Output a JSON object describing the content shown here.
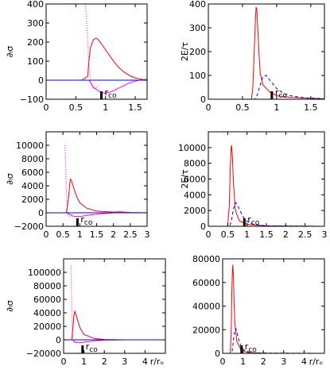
{
  "chart_data": [
    {
      "id": "p1",
      "type": "line",
      "ylabel": "∂ₗσ",
      "xlabel": "",
      "xlim": [
        0,
        1.7
      ],
      "ylim": [
        -100,
        400
      ],
      "xticks": [
        "0",
        "0.5",
        "1",
        "1.5"
      ],
      "xtick_values": [
        0,
        0.5,
        1,
        1.5
      ],
      "yticks": [
        "−100",
        "0",
        "100",
        "200",
        "300",
        "400"
      ],
      "ytick_values": [
        -100,
        0,
        100,
        200,
        300,
        400
      ],
      "marker": {
        "label": "r",
        "sub": "co",
        "x": 0.93
      },
      "series": [
        {
          "color": "#ff0000",
          "dash": "solid",
          "x": [
            0,
            0.6,
            0.7,
            0.72,
            0.75,
            0.8,
            0.85,
            0.9,
            1.0,
            1.1,
            1.2,
            1.3,
            1.4,
            1.5,
            1.6,
            1.7
          ],
          "y": [
            0,
            0,
            20,
            100,
            175,
            215,
            220,
            205,
            160,
            115,
            75,
            45,
            25,
            12,
            5,
            0
          ]
        },
        {
          "color": "#ff00ff",
          "dash": "dotted",
          "x": [
            0.66,
            0.68,
            0.7,
            0.72,
            0.74,
            0.77,
            0.8,
            0.85,
            0.9
          ],
          "y": [
            400,
            330,
            200,
            90,
            20,
            -30,
            -45,
            -40,
            -25
          ]
        },
        {
          "color": "#ff00ff",
          "dash": "solid",
          "x": [
            0,
            0.72,
            0.75,
            0.8,
            0.9,
            1.0,
            1.1,
            1.2,
            1.3,
            1.4,
            1.5,
            1.6,
            1.7
          ],
          "y": [
            0,
            0,
            -12,
            -38,
            -60,
            -68,
            -60,
            -45,
            -30,
            -15,
            -5,
            2,
            4
          ]
        },
        {
          "color": "#0000ff",
          "dash": "solid",
          "x": [
            0,
            0.3,
            0.6,
            0.9,
            1.2,
            1.5,
            1.7
          ],
          "y": [
            0,
            0,
            0,
            0,
            0,
            0,
            0
          ]
        }
      ]
    },
    {
      "id": "p2",
      "type": "line",
      "ylabel": "2E/τ",
      "xlabel": "",
      "xlim": [
        0,
        1.7
      ],
      "ylim": [
        0,
        400
      ],
      "xticks": [
        "0",
        "0.5",
        "1",
        "1.5"
      ],
      "xtick_values": [
        0,
        0.5,
        1,
        1.5
      ],
      "yticks": [
        "0",
        "100",
        "200",
        "300",
        "400"
      ],
      "ytick_values": [
        0,
        100,
        200,
        300,
        400
      ],
      "marker": {
        "label": "r",
        "sub": "co",
        "x": 0.93
      },
      "series": [
        {
          "color": "#ff0000",
          "dash": "solid",
          "x": [
            0,
            0.63,
            0.65,
            0.67,
            0.69,
            0.7,
            0.71,
            0.72,
            0.74,
            0.76,
            0.8,
            0.9,
            1.0,
            1.2,
            1.4,
            1.6,
            1.7
          ],
          "y": [
            0,
            0,
            40,
            180,
            340,
            385,
            380,
            320,
            200,
            110,
            60,
            30,
            15,
            8,
            5,
            3,
            2
          ]
        },
        {
          "color": "#0000ff",
          "dash": "dashed",
          "x": [
            0,
            0.68,
            0.72,
            0.76,
            0.8,
            0.85,
            0.9,
            1.0,
            1.1,
            1.2,
            1.4,
            1.7
          ],
          "y": [
            0,
            0,
            20,
            60,
            95,
            100,
            80,
            45,
            25,
            15,
            6,
            2
          ]
        }
      ]
    },
    {
      "id": "p3",
      "type": "line",
      "ylabel": "∂ₗσ",
      "xlabel": "",
      "xlim": [
        0,
        3
      ],
      "ylim": [
        -2000,
        12000
      ],
      "xticks": [
        "0",
        "0.5",
        "1",
        "1.5",
        "2",
        "2.5",
        "3"
      ],
      "xtick_values": [
        0,
        0.5,
        1,
        1.5,
        2,
        2.5,
        3
      ],
      "yticks": [
        "−2000",
        "0",
        "2000",
        "4000",
        "6000",
        "8000",
        "10000"
      ],
      "ytick_values": [
        -2000,
        0,
        2000,
        4000,
        6000,
        8000,
        10000
      ],
      "marker": {
        "label": "r",
        "sub": "co",
        "x": 0.93
      },
      "series": [
        {
          "color": "#ff0000",
          "dash": "solid",
          "x": [
            0,
            0.6,
            0.65,
            0.7,
            0.72,
            0.75,
            0.8,
            0.9,
            1.0,
            1.2,
            1.5,
            2.0,
            2.2,
            2.5,
            3.0
          ],
          "y": [
            0,
            0,
            1500,
            4000,
            5000,
            4800,
            4000,
            2500,
            1500,
            700,
            250,
            100,
            150,
            30,
            0
          ]
        },
        {
          "color": "#ff00ff",
          "dash": "dotted",
          "x": [
            0.56,
            0.58,
            0.6,
            0.62,
            0.65,
            0.7,
            0.8
          ],
          "y": [
            10000,
            7000,
            3500,
            1000,
            -300,
            -500,
            -200
          ]
        },
        {
          "color": "#ff00ff",
          "dash": "solid",
          "x": [
            0,
            0.62,
            0.7,
            0.8,
            1.0,
            1.2,
            1.5,
            2.0,
            2.2,
            2.5,
            3.0
          ],
          "y": [
            0,
            0,
            -250,
            -500,
            -550,
            -400,
            -200,
            0,
            60,
            20,
            0
          ]
        },
        {
          "color": "#0000ff",
          "dash": "solid",
          "x": [
            0,
            1,
            2,
            3
          ],
          "y": [
            0,
            0,
            0,
            0
          ]
        }
      ]
    },
    {
      "id": "p4",
      "type": "line",
      "ylabel": "2E/τ",
      "xlabel": "",
      "xlim": [
        0,
        3
      ],
      "ylim": [
        0,
        12000
      ],
      "xticks": [
        "0",
        "0.5",
        "1",
        "1.5",
        "2",
        "2.5",
        "3"
      ],
      "xtick_values": [
        0,
        0.5,
        1,
        1.5,
        2,
        2.5,
        3
      ],
      "yticks": [
        "0",
        "2000",
        "4000",
        "6000",
        "8000",
        "10000"
      ],
      "ytick_values": [
        0,
        2000,
        4000,
        6000,
        8000,
        10000
      ],
      "marker": {
        "label": "r",
        "sub": "co",
        "x": 0.93
      },
      "series": [
        {
          "color": "#ff0000",
          "dash": "solid",
          "x": [
            0,
            0.5,
            0.54,
            0.57,
            0.59,
            0.6,
            0.62,
            0.65,
            0.7,
            0.8,
            1.0,
            1.5,
            3.0
          ],
          "y": [
            0,
            0,
            2500,
            7500,
            10000,
            10300,
            9000,
            5500,
            2000,
            700,
            250,
            50,
            0
          ]
        },
        {
          "color": "#0000ff",
          "dash": "dashed",
          "x": [
            0,
            0.55,
            0.6,
            0.65,
            0.7,
            0.75,
            0.8,
            0.9,
            1.0,
            1.2,
            1.5,
            3.0
          ],
          "y": [
            0,
            0,
            800,
            2200,
            3000,
            2800,
            2200,
            1200,
            600,
            200,
            50,
            0
          ]
        }
      ]
    },
    {
      "id": "p5",
      "type": "line",
      "ylabel": "∂ₗσ",
      "xlabel": "r/rₒ",
      "xlim": [
        0,
        5
      ],
      "ylim": [
        -20000,
        120000
      ],
      "xticks": [
        "0",
        "1",
        "2",
        "3",
        "4"
      ],
      "xtick_values": [
        0,
        1,
        2,
        3,
        4
      ],
      "yticks": [
        "−20000",
        "0",
        "20000",
        "40000",
        "60000",
        "80000",
        "100000"
      ],
      "ytick_values": [
        -20000,
        0,
        20000,
        40000,
        60000,
        80000,
        100000
      ],
      "marker": {
        "label": "r",
        "sub": "co",
        "x": 0.93
      },
      "series": [
        {
          "color": "#ff0000",
          "dash": "solid",
          "x": [
            0,
            0.4,
            0.45,
            0.5,
            0.55,
            0.6,
            0.7,
            0.8,
            1.0,
            1.5,
            2.0,
            3.0,
            5.0
          ],
          "y": [
            0,
            0,
            15000,
            35000,
            42000,
            38000,
            28000,
            18000,
            8000,
            2000,
            500,
            0,
            0
          ]
        },
        {
          "color": "#ff00ff",
          "dash": "dotted",
          "x": [
            0.36,
            0.38,
            0.4,
            0.43,
            0.46,
            0.5,
            0.6
          ],
          "y": [
            110000,
            80000,
            45000,
            15000,
            0,
            -3000,
            -1500
          ]
        },
        {
          "color": "#ff00ff",
          "dash": "solid",
          "x": [
            0,
            0.45,
            0.5,
            0.6,
            0.8,
            1.0,
            1.5,
            2.0,
            3.0,
            5.0
          ],
          "y": [
            0,
            0,
            -2000,
            -4000,
            -4500,
            -3500,
            -1500,
            -500,
            0,
            0
          ]
        },
        {
          "color": "#0000ff",
          "dash": "solid",
          "x": [
            0,
            1,
            2,
            3,
            4,
            5
          ],
          "y": [
            0,
            0,
            0,
            0,
            0,
            0
          ]
        }
      ]
    },
    {
      "id": "p6",
      "type": "line",
      "ylabel": "",
      "xlabel": "r/rₒ",
      "xlim": [
        0,
        5
      ],
      "ylim": [
        0,
        80000
      ],
      "xticks": [
        "0",
        "1",
        "2",
        "3",
        "4"
      ],
      "xtick_values": [
        0,
        1,
        2,
        3,
        4
      ],
      "yticks": [
        "0",
        "20000",
        "40000",
        "60000",
        "80000"
      ],
      "ytick_values": [
        0,
        20000,
        40000,
        60000,
        80000
      ],
      "marker": {
        "label": "r",
        "sub": "co",
        "x": 0.93
      },
      "series": [
        {
          "color": "#ff0000",
          "dash": "solid",
          "x": [
            0,
            0.38,
            0.42,
            0.45,
            0.48,
            0.5,
            0.53,
            0.56,
            0.6,
            0.7,
            0.9,
            1.2,
            2.0,
            5.0
          ],
          "y": [
            0,
            0,
            20000,
            50000,
            70000,
            75000,
            65000,
            45000,
            25000,
            10000,
            3000,
            800,
            100,
            0
          ]
        },
        {
          "color": "#0000ff",
          "dash": "dashed",
          "x": [
            0,
            0.45,
            0.5,
            0.55,
            0.6,
            0.65,
            0.7,
            0.8,
            0.9,
            1.1,
            1.5,
            5.0
          ],
          "y": [
            0,
            0,
            6000,
            15000,
            20000,
            21000,
            18000,
            11000,
            6000,
            2000,
            300,
            0
          ]
        }
      ]
    }
  ]
}
